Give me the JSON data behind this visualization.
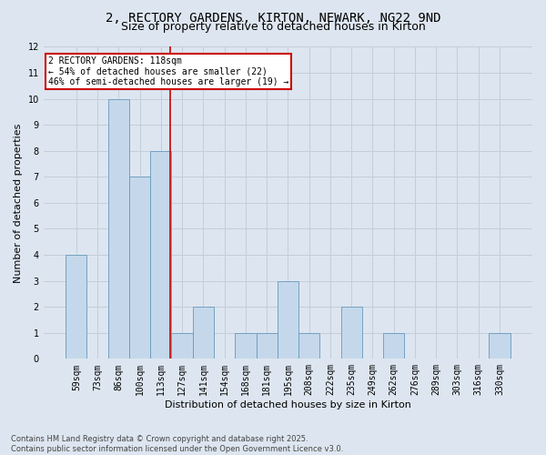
{
  "title_line1": "2, RECTORY GARDENS, KIRTON, NEWARK, NG22 9ND",
  "title_line2": "Size of property relative to detached houses in Kirton",
  "xlabel": "Distribution of detached houses by size in Kirton",
  "ylabel": "Number of detached properties",
  "categories": [
    "59sqm",
    "73sqm",
    "86sqm",
    "100sqm",
    "113sqm",
    "127sqm",
    "141sqm",
    "154sqm",
    "168sqm",
    "181sqm",
    "195sqm",
    "208sqm",
    "222sqm",
    "235sqm",
    "249sqm",
    "262sqm",
    "276sqm",
    "289sqm",
    "303sqm",
    "316sqm",
    "330sqm"
  ],
  "values": [
    4,
    0,
    10,
    7,
    8,
    1,
    2,
    0,
    1,
    1,
    3,
    1,
    0,
    2,
    0,
    1,
    0,
    0,
    0,
    0,
    1
  ],
  "bar_color": "#c5d8eb",
  "bar_edge_color": "#6699bb",
  "grid_color": "#c5ced8",
  "background_color": "#dde6f0",
  "annotation_text": "2 RECTORY GARDENS: 118sqm\n← 54% of detached houses are smaller (22)\n46% of semi-detached houses are larger (19) →",
  "annotation_box_color": "white",
  "annotation_box_edge_color": "#cc0000",
  "red_line_color": "#cc0000",
  "red_line_x": 4.42,
  "ylim": [
    0,
    12
  ],
  "yticks": [
    0,
    1,
    2,
    3,
    4,
    5,
    6,
    7,
    8,
    9,
    10,
    11,
    12
  ],
  "footnote_line1": "Contains HM Land Registry data © Crown copyright and database right 2025.",
  "footnote_line2": "Contains public sector information licensed under the Open Government Licence v3.0.",
  "title_fontsize": 10,
  "subtitle_fontsize": 9,
  "tick_fontsize": 7,
  "label_fontsize": 8,
  "annotation_fontsize": 7,
  "footnote_fontsize": 6
}
